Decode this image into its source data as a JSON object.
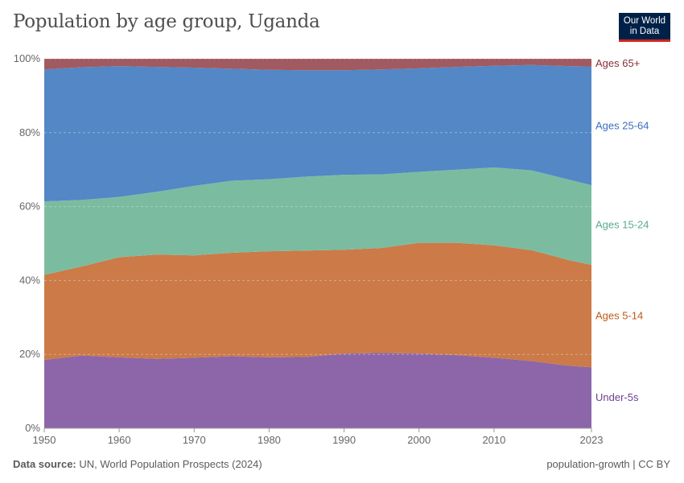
{
  "title": "Population by age group, Uganda",
  "logo": {
    "line1": "Our World",
    "line2": "in Data"
  },
  "footer": {
    "source_label": "Data source:",
    "source": "UN, World Population Prospects (2024)",
    "right": "population-growth | CC BY"
  },
  "chart_data": {
    "type": "area",
    "stacked": true,
    "title": "Population by age group, Uganda",
    "x": [
      1950,
      1955,
      1960,
      1965,
      1970,
      1975,
      1980,
      1985,
      1990,
      1995,
      2000,
      2005,
      2010,
      2015,
      2020,
      2023
    ],
    "xlim": [
      1950,
      2023
    ],
    "ylim": [
      0,
      100
    ],
    "x_ticks": [
      "1950",
      "1960",
      "1970",
      "1980",
      "1990",
      "2000",
      "2010",
      "2023"
    ],
    "y_ticks": [
      "0%",
      "20%",
      "40%",
      "60%",
      "80%",
      "100%"
    ],
    "grid": "horizontal dashed",
    "legend": "right, inline labels",
    "series": [
      {
        "name": "Under-5s",
        "color": "#8c66a8",
        "label_color": "#6d3e91",
        "values": [
          18.5,
          19.7,
          19.2,
          18.8,
          19.1,
          19.5,
          19.2,
          19.3,
          20.2,
          20.4,
          20.2,
          19.8,
          19.1,
          18.2,
          16.9,
          16.5
        ]
      },
      {
        "name": "Ages 5-14",
        "color": "#cc7a47",
        "label_color": "#c05917",
        "values": [
          23.0,
          24.1,
          27.1,
          28.2,
          27.7,
          28.0,
          28.7,
          28.8,
          28.1,
          28.4,
          30.0,
          30.4,
          30.4,
          30.0,
          28.6,
          27.7
        ]
      },
      {
        "name": "Ages 15-24",
        "color": "#7bbca0",
        "label_color": "#58ac8c",
        "values": [
          19.9,
          18.0,
          16.3,
          17.0,
          18.8,
          19.5,
          19.5,
          20.0,
          20.3,
          19.9,
          19.2,
          19.8,
          21.1,
          21.6,
          21.8,
          21.6
        ]
      },
      {
        "name": "Ages 25-64",
        "color": "#5387c6",
        "label_color": "#3a6fbf",
        "values": [
          35.7,
          35.9,
          35.4,
          33.8,
          32.0,
          30.3,
          29.6,
          28.8,
          28.3,
          28.4,
          28.0,
          27.8,
          27.5,
          28.5,
          30.7,
          32.1
        ]
      },
      {
        "name": "Ages 65+",
        "color": "#a15a60",
        "label_color": "#883039",
        "values": [
          2.9,
          2.3,
          2.0,
          2.2,
          2.4,
          2.7,
          3.0,
          3.1,
          3.1,
          2.9,
          2.6,
          2.2,
          1.9,
          1.7,
          2.0,
          2.1
        ]
      }
    ]
  }
}
